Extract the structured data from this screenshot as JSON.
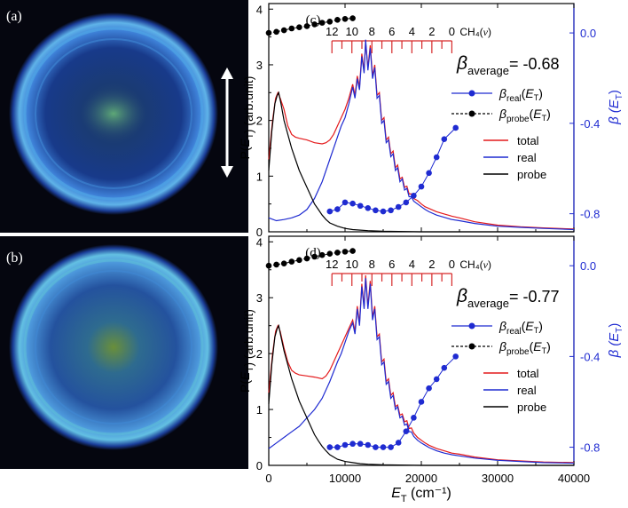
{
  "image_panels": [
    {
      "label": "(a)"
    },
    {
      "label": "(b)"
    }
  ],
  "chart_data": [
    {
      "type": "line",
      "panel_label": "(c)",
      "xlabel": "E_T (cm⁻¹)",
      "ylabel_left": "P(E_T) (arb.unit)",
      "ylabel_right": "β (E_T)",
      "xlim": [
        0,
        40000
      ],
      "ylim_left": [
        0,
        4.1
      ],
      "ylim_right": [
        -0.88,
        0.13
      ],
      "x_ticks": [
        0,
        10000,
        20000,
        30000,
        40000
      ],
      "y_left_ticks": [
        0,
        1,
        2,
        3,
        4
      ],
      "y_right_ticks": [
        -0.8,
        -0.4,
        0.0
      ],
      "y_right_tick_labels": [
        "-0.8",
        "-0.4",
        "0.0"
      ],
      "grid": false,
      "annotation": {
        "main": "β",
        "sub": "average",
        "value": "= -0.68"
      },
      "comb": {
        "title": "CH₄(ν)",
        "labels": [
          "12",
          "10",
          "8",
          "6",
          "4",
          "2",
          "0"
        ],
        "v0_position": 24000,
        "spacing": 1310,
        "color": "#d62728"
      },
      "legend_beta": [
        {
          "label": "β",
          "sub": "real",
          "suffix": "(E_T)",
          "style": "blue-circle-line"
        },
        {
          "label": "β",
          "sub": "probe",
          "suffix": "(E_T)",
          "style": "black-circle-dash"
        }
      ],
      "legend_lines": [
        "total",
        "real",
        "probe"
      ],
      "colors": {
        "total": "#e41a1c",
        "real": "#1f2bd1",
        "probe": "#000000",
        "beta_real": "#1f2bd1",
        "beta_probe": "#000000",
        "comb": "#d62728",
        "right_axis": "#1f2bd1"
      },
      "series": [
        {
          "name": "total",
          "x": [
            0,
            500,
            900,
            1200,
            1500,
            2000,
            2500,
            3000,
            3500,
            4000,
            5000,
            6000,
            7000,
            7500,
            8000,
            8500,
            9000,
            9500,
            10000,
            10500,
            11000,
            11300,
            11600,
            11900,
            12200,
            12500,
            12700,
            13000,
            13300,
            13600,
            13900,
            14200,
            14500,
            14800,
            15100,
            15400,
            15700,
            16000,
            16300,
            16600,
            16900,
            17200,
            17500,
            17800,
            18100,
            18400,
            18700,
            19000,
            19500,
            20000,
            20500,
            21000,
            22000,
            23000,
            24000,
            25000,
            27000,
            30000,
            33000,
            36000,
            40000
          ],
          "y": [
            1.3,
            2.0,
            2.4,
            2.5,
            2.4,
            2.2,
            1.9,
            1.75,
            1.7,
            1.68,
            1.65,
            1.6,
            1.58,
            1.6,
            1.65,
            1.75,
            1.9,
            2.05,
            2.2,
            2.4,
            2.65,
            2.45,
            2.8,
            2.6,
            3.2,
            2.9,
            3.4,
            2.95,
            3.35,
            2.8,
            3.0,
            2.45,
            2.5,
            2.0,
            2.05,
            1.65,
            1.7,
            1.4,
            1.45,
            1.15,
            1.2,
            0.95,
            0.98,
            0.8,
            0.82,
            0.68,
            0.68,
            0.6,
            0.56,
            0.5,
            0.45,
            0.42,
            0.36,
            0.32,
            0.28,
            0.25,
            0.18,
            0.12,
            0.09,
            0.07,
            0.05
          ]
        },
        {
          "name": "real",
          "x": [
            0,
            1000,
            2000,
            3000,
            4000,
            5000,
            6000,
            7000,
            8000,
            9000,
            9500,
            10000,
            10500,
            11000,
            11300,
            11600,
            11900,
            12200,
            12500,
            12700,
            13000,
            13300,
            13600,
            13900,
            14200,
            14500,
            14800,
            15100,
            15400,
            15700,
            16000,
            16300,
            16600,
            16900,
            17200,
            17500,
            17800,
            18100,
            18400,
            18700,
            19000,
            19500,
            20000,
            20500,
            21000,
            22000,
            23000,
            24000,
            25000,
            27000,
            30000,
            33000,
            36000,
            40000
          ],
          "y": [
            0.25,
            0.2,
            0.22,
            0.25,
            0.3,
            0.4,
            0.6,
            0.9,
            1.3,
            1.7,
            1.9,
            2.05,
            2.3,
            2.6,
            2.4,
            2.75,
            2.55,
            3.15,
            2.85,
            3.45,
            2.9,
            3.3,
            2.75,
            2.95,
            2.4,
            2.45,
            1.95,
            2.0,
            1.6,
            1.65,
            1.35,
            1.4,
            1.1,
            1.15,
            0.9,
            0.95,
            0.75,
            0.78,
            0.63,
            0.63,
            0.55,
            0.5,
            0.45,
            0.4,
            0.36,
            0.3,
            0.26,
            0.22,
            0.2,
            0.15,
            0.1,
            0.08,
            0.06,
            0.04
          ]
        },
        {
          "name": "probe",
          "x": [
            0,
            400,
            800,
            1100,
            1300,
            1600,
            2000,
            2500,
            3000,
            3500,
            4000,
            4500,
            5000,
            5500,
            6000,
            6500,
            7000,
            7500,
            8000,
            9000,
            10000,
            11000,
            12000,
            13000,
            15000,
            20000,
            30000,
            40000
          ],
          "y": [
            1.1,
            1.8,
            2.3,
            2.45,
            2.5,
            2.3,
            2.0,
            1.75,
            1.5,
            1.3,
            1.1,
            0.95,
            0.8,
            0.65,
            0.5,
            0.4,
            0.3,
            0.22,
            0.16,
            0.1,
            0.06,
            0.04,
            0.03,
            0.02,
            0.01,
            0.0,
            0.0,
            0.0
          ]
        },
        {
          "name": "β_real(E_T)",
          "x": [
            8000,
            9000,
            10000,
            11000,
            12000,
            13000,
            14000,
            15000,
            16000,
            17000,
            18000,
            19000,
            20000,
            21000,
            22000,
            23000,
            24500
          ],
          "y": [
            -0.79,
            -0.78,
            -0.75,
            -0.755,
            -0.765,
            -0.775,
            -0.785,
            -0.79,
            -0.785,
            -0.77,
            -0.75,
            -0.72,
            -0.68,
            -0.62,
            -0.55,
            -0.47,
            -0.42
          ]
        },
        {
          "name": "β_probe(E_T)",
          "x": [
            0,
            1000,
            2000,
            3000,
            4000,
            5000,
            6000,
            7000,
            8000,
            9000,
            10000,
            11000
          ],
          "y": [
            0.0,
            0.005,
            0.012,
            0.02,
            0.025,
            0.03,
            0.038,
            0.045,
            0.05,
            0.058,
            0.062,
            0.065
          ]
        }
      ]
    },
    {
      "type": "line",
      "panel_label": "(d)",
      "xlabel": "E_T (cm⁻¹)",
      "ylabel_left": "P(E_T) (arb.unit)",
      "ylabel_right": "β (E_T)",
      "xlim": [
        0,
        40000
      ],
      "ylim_left": [
        0,
        4.1
      ],
      "ylim_right": [
        -0.88,
        0.13
      ],
      "x_ticks": [
        0,
        10000,
        20000,
        30000,
        40000
      ],
      "x_tick_labels": [
        "0",
        "10000",
        "20000",
        "30000",
        "40000"
      ],
      "y_left_ticks": [
        0,
        1,
        2,
        3,
        4
      ],
      "y_right_ticks": [
        -0.8,
        -0.4,
        0.0
      ],
      "y_right_tick_labels": [
        "-0.8",
        "-0.4",
        "0.0"
      ],
      "grid": false,
      "annotation": {
        "main": "β",
        "sub": "average",
        "value": "= -0.77"
      },
      "comb": {
        "title": "CH₄(ν)",
        "labels": [
          "12",
          "10",
          "8",
          "6",
          "4",
          "2",
          "0"
        ],
        "v0_position": 24000,
        "spacing": 1310,
        "color": "#d62728"
      },
      "legend_beta": [
        {
          "label": "β",
          "sub": "real",
          "suffix": "(E_T)",
          "style": "blue-circle-line"
        },
        {
          "label": "β",
          "sub": "probe",
          "suffix": "(E_T)",
          "style": "black-circle-dash"
        }
      ],
      "legend_lines": [
        "total",
        "real",
        "probe"
      ],
      "colors": {
        "total": "#e41a1c",
        "real": "#1f2bd1",
        "probe": "#000000",
        "beta_real": "#1f2bd1",
        "beta_probe": "#000000",
        "comb": "#d62728",
        "right_axis": "#1f2bd1"
      },
      "series": [
        {
          "name": "total",
          "x": [
            0,
            500,
            900,
            1200,
            1500,
            2000,
            2500,
            3000,
            3500,
            4000,
            5000,
            6000,
            7000,
            7500,
            8000,
            8500,
            9000,
            9500,
            10000,
            10500,
            11000,
            11300,
            11600,
            11900,
            12200,
            12500,
            12700,
            13000,
            13300,
            13600,
            13900,
            14200,
            14500,
            14800,
            15100,
            15400,
            15700,
            16000,
            16300,
            16600,
            16900,
            17200,
            17500,
            17800,
            18100,
            18400,
            18700,
            19000,
            19500,
            20000,
            20500,
            21000,
            22000,
            23000,
            24000,
            25000,
            27000,
            30000,
            33000,
            36000,
            40000
          ],
          "y": [
            1.3,
            2.0,
            2.4,
            2.5,
            2.4,
            2.1,
            1.85,
            1.7,
            1.65,
            1.62,
            1.6,
            1.58,
            1.55,
            1.6,
            1.7,
            1.85,
            2.0,
            2.15,
            2.3,
            2.45,
            2.6,
            2.4,
            2.85,
            2.55,
            3.25,
            2.85,
            3.4,
            2.85,
            3.3,
            2.65,
            2.85,
            2.3,
            2.35,
            1.85,
            1.9,
            1.5,
            1.55,
            1.25,
            1.3,
            1.05,
            1.08,
            0.9,
            0.92,
            0.78,
            0.8,
            0.66,
            0.67,
            0.58,
            0.5,
            0.45,
            0.4,
            0.36,
            0.3,
            0.26,
            0.22,
            0.2,
            0.15,
            0.1,
            0.08,
            0.06,
            0.05
          ]
        },
        {
          "name": "real",
          "x": [
            0,
            1000,
            2000,
            3000,
            4000,
            5000,
            6000,
            7000,
            8000,
            9000,
            9500,
            10000,
            10500,
            11000,
            11300,
            11600,
            11900,
            12200,
            12500,
            12700,
            13000,
            13300,
            13600,
            13900,
            14200,
            14500,
            14800,
            15100,
            15400,
            15700,
            16000,
            16300,
            16600,
            16900,
            17200,
            17500,
            17800,
            18100,
            18400,
            18700,
            19000,
            19500,
            20000,
            20500,
            21000,
            22000,
            23000,
            24000,
            25000,
            27000,
            30000,
            33000,
            36000,
            40000
          ],
          "y": [
            0.3,
            0.4,
            0.5,
            0.6,
            0.7,
            0.85,
            1.0,
            1.2,
            1.5,
            1.85,
            2.0,
            2.2,
            2.4,
            2.55,
            2.35,
            2.8,
            2.5,
            3.2,
            2.8,
            3.35,
            2.8,
            3.25,
            2.6,
            2.8,
            2.25,
            2.3,
            1.8,
            1.85,
            1.45,
            1.5,
            1.2,
            1.25,
            1.0,
            1.05,
            0.85,
            0.88,
            0.72,
            0.74,
            0.6,
            0.6,
            0.52,
            0.45,
            0.4,
            0.36,
            0.32,
            0.26,
            0.22,
            0.19,
            0.17,
            0.13,
            0.09,
            0.07,
            0.05,
            0.04
          ]
        },
        {
          "name": "probe",
          "x": [
            0,
            400,
            800,
            1100,
            1300,
            1600,
            2000,
            2500,
            3000,
            3500,
            4000,
            4500,
            5000,
            5500,
            6000,
            6500,
            7000,
            7500,
            8000,
            9000,
            10000,
            11000,
            12000,
            13000,
            15000,
            20000,
            30000,
            40000
          ],
          "y": [
            1.1,
            1.8,
            2.3,
            2.45,
            2.5,
            2.3,
            2.05,
            1.8,
            1.55,
            1.35,
            1.15,
            1.0,
            0.85,
            0.7,
            0.55,
            0.44,
            0.34,
            0.26,
            0.19,
            0.11,
            0.07,
            0.05,
            0.03,
            0.02,
            0.01,
            0.0,
            0.0,
            0.0
          ]
        },
        {
          "name": "β_real(E_T)",
          "x": [
            8000,
            9000,
            10000,
            11000,
            12000,
            13000,
            14000,
            15000,
            16000,
            17000,
            18000,
            19000,
            20000,
            21000,
            22000,
            23000,
            24500
          ],
          "y": [
            -0.8,
            -0.8,
            -0.79,
            -0.785,
            -0.785,
            -0.79,
            -0.8,
            -0.8,
            -0.8,
            -0.78,
            -0.73,
            -0.67,
            -0.6,
            -0.54,
            -0.5,
            -0.45,
            -0.4
          ]
        },
        {
          "name": "β_probe(E_T)",
          "x": [
            0,
            1000,
            2000,
            3000,
            4000,
            5000,
            6000,
            7000,
            8000,
            9000,
            10000,
            11000
          ],
          "y": [
            0.0,
            0.005,
            0.01,
            0.018,
            0.025,
            0.032,
            0.04,
            0.047,
            0.053,
            0.058,
            0.062,
            0.065
          ]
        }
      ]
    }
  ]
}
